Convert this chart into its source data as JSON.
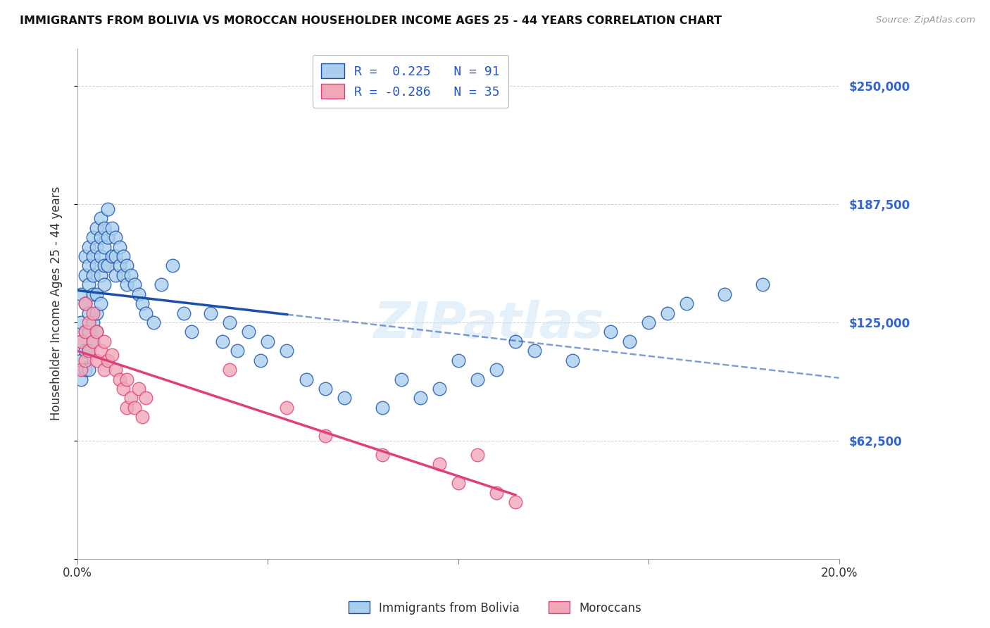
{
  "title": "IMMIGRANTS FROM BOLIVIA VS MOROCCAN HOUSEHOLDER INCOME AGES 25 - 44 YEARS CORRELATION CHART",
  "source": "Source: ZipAtlas.com",
  "ylabel": "Householder Income Ages 25 - 44 years",
  "yticks": [
    0,
    62500,
    125000,
    187500,
    250000
  ],
  "ytick_labels": [
    "",
    "$62,500",
    "$125,000",
    "$187,500",
    "$250,000"
  ],
  "xlim": [
    0.0,
    0.2
  ],
  "ylim": [
    0,
    270000
  ],
  "legend_entry1": "R =  0.225   N = 91",
  "legend_entry2": "R = -0.286   N = 35",
  "color_bolivia": "#aacfee",
  "color_morocco": "#f0a8b8",
  "line_color_bolivia": "#1a4faa",
  "line_color_morocco": "#e0407a",
  "watermark": "ZIPatlas",
  "legend_label1": "Immigrants from Bolivia",
  "legend_label2": "Moroccans",
  "bolivia_x": [
    0.001,
    0.001,
    0.001,
    0.001,
    0.001,
    0.002,
    0.002,
    0.002,
    0.002,
    0.002,
    0.002,
    0.003,
    0.003,
    0.003,
    0.003,
    0.003,
    0.003,
    0.003,
    0.004,
    0.004,
    0.004,
    0.004,
    0.004,
    0.004,
    0.005,
    0.005,
    0.005,
    0.005,
    0.005,
    0.005,
    0.006,
    0.006,
    0.006,
    0.006,
    0.006,
    0.007,
    0.007,
    0.007,
    0.007,
    0.008,
    0.008,
    0.008,
    0.009,
    0.009,
    0.01,
    0.01,
    0.01,
    0.011,
    0.011,
    0.012,
    0.012,
    0.013,
    0.013,
    0.014,
    0.015,
    0.016,
    0.017,
    0.018,
    0.02,
    0.022,
    0.025,
    0.028,
    0.03,
    0.035,
    0.038,
    0.04,
    0.042,
    0.045,
    0.048,
    0.05,
    0.055,
    0.06,
    0.065,
    0.07,
    0.08,
    0.085,
    0.09,
    0.095,
    0.1,
    0.105,
    0.11,
    0.115,
    0.12,
    0.13,
    0.14,
    0.145,
    0.15,
    0.155,
    0.16,
    0.17,
    0.18
  ],
  "bolivia_y": [
    125000,
    140000,
    115000,
    105000,
    95000,
    150000,
    160000,
    135000,
    120000,
    110000,
    100000,
    165000,
    155000,
    145000,
    130000,
    120000,
    110000,
    100000,
    170000,
    160000,
    150000,
    140000,
    125000,
    115000,
    175000,
    165000,
    155000,
    140000,
    130000,
    120000,
    180000,
    170000,
    160000,
    150000,
    135000,
    175000,
    165000,
    155000,
    145000,
    185000,
    170000,
    155000,
    175000,
    160000,
    170000,
    160000,
    150000,
    165000,
    155000,
    160000,
    150000,
    155000,
    145000,
    150000,
    145000,
    140000,
    135000,
    130000,
    125000,
    145000,
    155000,
    130000,
    120000,
    130000,
    115000,
    125000,
    110000,
    120000,
    105000,
    115000,
    110000,
    95000,
    90000,
    85000,
    80000,
    95000,
    85000,
    90000,
    105000,
    95000,
    100000,
    115000,
    110000,
    105000,
    120000,
    115000,
    125000,
    130000,
    135000,
    140000,
    145000
  ],
  "morocco_x": [
    0.001,
    0.001,
    0.002,
    0.002,
    0.002,
    0.003,
    0.003,
    0.004,
    0.004,
    0.005,
    0.005,
    0.006,
    0.007,
    0.007,
    0.008,
    0.009,
    0.01,
    0.011,
    0.012,
    0.013,
    0.013,
    0.014,
    0.015,
    0.016,
    0.017,
    0.018,
    0.04,
    0.055,
    0.065,
    0.08,
    0.095,
    0.1,
    0.105,
    0.11,
    0.115
  ],
  "morocco_y": [
    115000,
    100000,
    135000,
    120000,
    105000,
    125000,
    110000,
    130000,
    115000,
    120000,
    105000,
    110000,
    115000,
    100000,
    105000,
    108000,
    100000,
    95000,
    90000,
    95000,
    80000,
    85000,
    80000,
    90000,
    75000,
    85000,
    100000,
    80000,
    65000,
    55000,
    50000,
    40000,
    55000,
    35000,
    30000
  ]
}
